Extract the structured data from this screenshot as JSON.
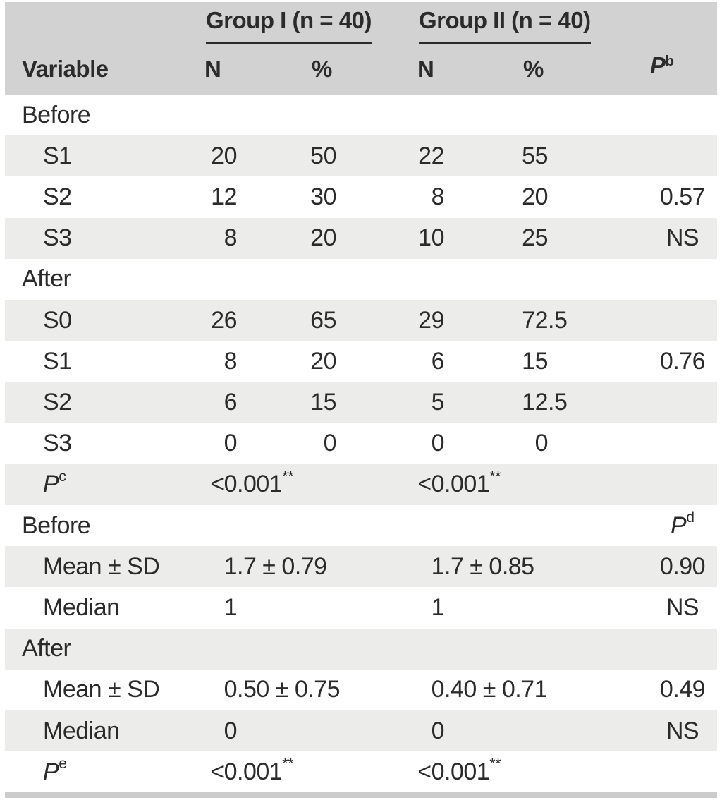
{
  "colors": {
    "header_bg": "#d2d2d2",
    "stripe_bg": "#ececeb",
    "row_bg": "#ffffff",
    "text": "#2b2b2b",
    "spanner_rule": "#2b2b2b",
    "bottom_bar": "#cccccc"
  },
  "header": {
    "variable_label": "Variable",
    "group1": {
      "title": "Group I (n = 40)",
      "col_n": "N",
      "col_pct": "%"
    },
    "group2": {
      "title": "Group II (n = 40)",
      "col_n": "N",
      "col_pct": "%"
    },
    "p_col": {
      "text": "P",
      "italic": true,
      "sup": "b"
    }
  },
  "rows": [
    {
      "label": {
        "text": "Before",
        "indent": false
      },
      "shaded": false,
      "cells": {}
    },
    {
      "label": {
        "text": "S1",
        "indent": true
      },
      "shaded": true,
      "cells": {
        "g1n": {
          "int": "20"
        },
        "g1p": {
          "int": "50"
        },
        "g2n": {
          "int": "22"
        },
        "g2p": {
          "int": "55"
        }
      }
    },
    {
      "label": {
        "text": "S2",
        "indent": true
      },
      "shaded": false,
      "cells": {
        "g1n": {
          "int": "12"
        },
        "g1p": {
          "int": "30"
        },
        "g2n": {
          "int": "8"
        },
        "g2p": {
          "int": "20"
        },
        "p": {
          "text": "0.57"
        }
      }
    },
    {
      "label": {
        "text": "S3",
        "indent": true
      },
      "shaded": true,
      "cells": {
        "g1n": {
          "int": "8"
        },
        "g1p": {
          "int": "20"
        },
        "g2n": {
          "int": "10"
        },
        "g2p": {
          "int": "25"
        },
        "p": {
          "text": "NS"
        }
      }
    },
    {
      "label": {
        "text": "After",
        "indent": false
      },
      "shaded": false,
      "cells": {}
    },
    {
      "label": {
        "text": "S0",
        "indent": true
      },
      "shaded": true,
      "cells": {
        "g1n": {
          "int": "26"
        },
        "g1p": {
          "int": "65"
        },
        "g2n": {
          "int": "29"
        },
        "g2p": {
          "int": "72",
          "frac": ".5"
        }
      }
    },
    {
      "label": {
        "text": "S1",
        "indent": true
      },
      "shaded": false,
      "cells": {
        "g1n": {
          "int": "8"
        },
        "g1p": {
          "int": "20"
        },
        "g2n": {
          "int": "6"
        },
        "g2p": {
          "int": "15"
        },
        "p": {
          "text": "0.76"
        }
      }
    },
    {
      "label": {
        "text": "S2",
        "indent": true
      },
      "shaded": true,
      "cells": {
        "g1n": {
          "int": "6"
        },
        "g1p": {
          "int": "15"
        },
        "g2n": {
          "int": "5"
        },
        "g2p": {
          "int": "12",
          "frac": ".5"
        }
      }
    },
    {
      "label": {
        "text": "S3",
        "indent": true
      },
      "shaded": false,
      "cells": {
        "g1n": {
          "int": "0"
        },
        "g1p": {
          "int": "0"
        },
        "g2n": {
          "int": "0"
        },
        "g2p": {
          "int": "0"
        }
      }
    },
    {
      "label": {
        "text": "P",
        "indent": true,
        "italic": true,
        "sup": "c"
      },
      "shaded": true,
      "cells": {
        "span1": {
          "int": "<0",
          "frac": ".001",
          "sup": "**"
        },
        "span2": {
          "int": "<0",
          "frac": ".001",
          "sup": "**"
        }
      }
    },
    {
      "label": {
        "text": "Before",
        "indent": false
      },
      "shaded": false,
      "cells": {
        "p": {
          "text": "P",
          "italic": true,
          "sup": "d"
        }
      }
    },
    {
      "label": {
        "text": "Mean ± SD",
        "indent": true
      },
      "shaded": true,
      "cells": {
        "span1": {
          "int": "1",
          "frac": ".7 ± 0.79"
        },
        "span2": {
          "int": "1",
          "frac": ".7 ± 0.85"
        },
        "p": {
          "text": "0.90"
        }
      }
    },
    {
      "label": {
        "text": "Median",
        "indent": true
      },
      "shaded": false,
      "cells": {
        "span1": {
          "int": "1"
        },
        "span2": {
          "int": "1"
        },
        "p": {
          "text": "NS"
        }
      }
    },
    {
      "label": {
        "text": "After",
        "indent": false
      },
      "shaded": true,
      "cells": {}
    },
    {
      "label": {
        "text": "Mean ± SD",
        "indent": true
      },
      "shaded": false,
      "cells": {
        "span1": {
          "int": "0",
          "frac": ".50 ± 0.75"
        },
        "span2": {
          "int": "0",
          "frac": ".40 ± 0.71"
        },
        "p": {
          "text": "0.49"
        }
      }
    },
    {
      "label": {
        "text": "Median",
        "indent": true
      },
      "shaded": true,
      "cells": {
        "span1": {
          "int": "0"
        },
        "span2": {
          "int": "0"
        },
        "p": {
          "text": "NS"
        }
      }
    },
    {
      "label": {
        "text": "P",
        "indent": true,
        "italic": true,
        "sup": "e"
      },
      "shaded": false,
      "cells": {
        "span1": {
          "int": "<0",
          "frac": ".001",
          "sup": "**"
        },
        "span2": {
          "int": "<0",
          "frac": ".001",
          "sup": "**"
        }
      }
    }
  ]
}
